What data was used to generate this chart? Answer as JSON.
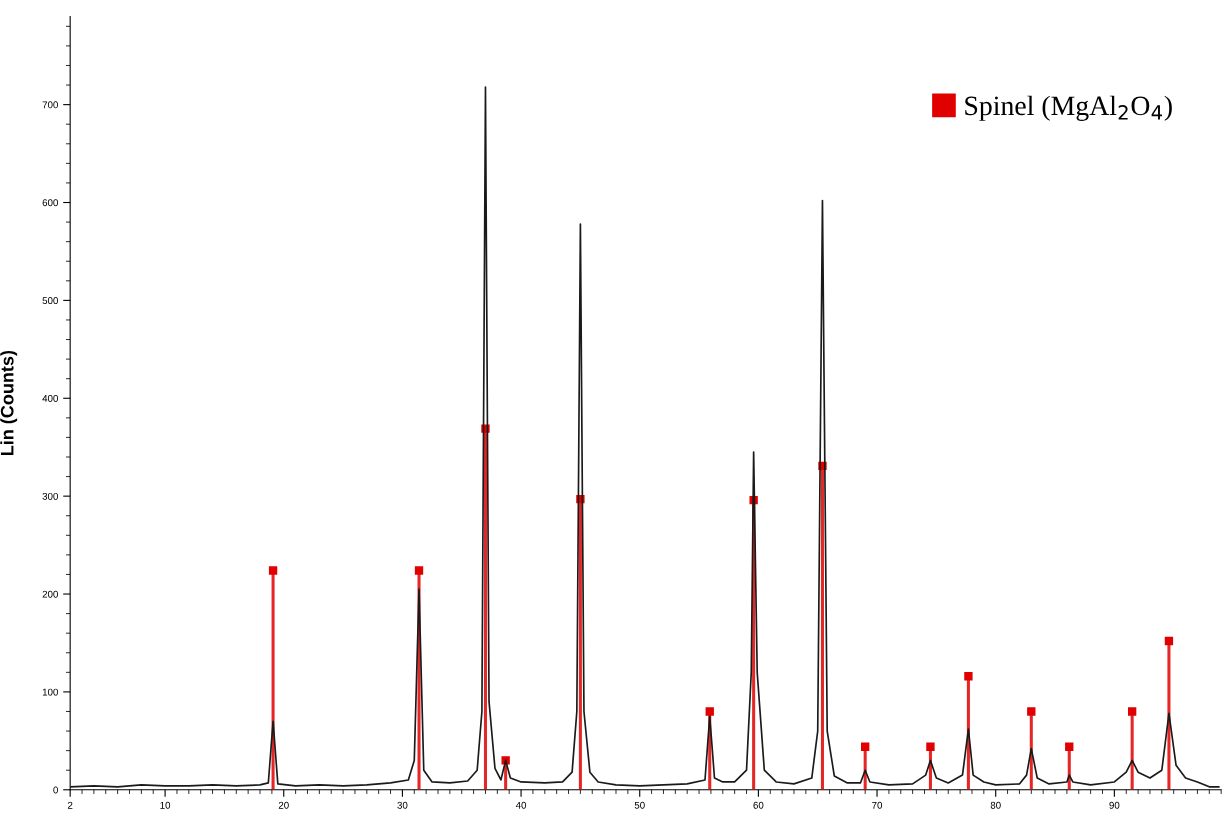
{
  "chart_data": {
    "type": "line",
    "ylabel": "Lin (Counts)",
    "xlim": [
      2,
      99
    ],
    "ylim": [
      0,
      790
    ],
    "xticks": [
      2,
      10,
      20,
      30,
      40,
      50,
      60,
      70,
      80,
      90
    ],
    "yticks": [
      0,
      100,
      200,
      300,
      400,
      500,
      600,
      700
    ],
    "grid": false,
    "legend": "top right",
    "series": [
      {
        "color": "#1a1a1a",
        "marker": "none",
        "line_style": "solid",
        "x": [
          2,
          4,
          6,
          8,
          10,
          12,
          14,
          16,
          18,
          18.7,
          19.1,
          19.5,
          21,
          23,
          25,
          27,
          29,
          30.5,
          31.0,
          31.4,
          31.8,
          32.5,
          34,
          35.5,
          36.3,
          36.7,
          37.0,
          37.3,
          37.8,
          38.3,
          38.7,
          39.1,
          40,
          42,
          43.5,
          44.3,
          44.7,
          45.0,
          45.3,
          45.8,
          46.5,
          48,
          50,
          52,
          54,
          55.5,
          55.9,
          56.3,
          57,
          58,
          59.0,
          59.4,
          59.6,
          59.9,
          60.5,
          61.5,
          63,
          64.5,
          65.0,
          65.4,
          65.8,
          66.4,
          67.5,
          68.6,
          69.0,
          69.4,
          71,
          73,
          74.1,
          74.5,
          75,
          76,
          77.2,
          77.7,
          78.1,
          79,
          80,
          82,
          82.6,
          83.0,
          83.5,
          84.5,
          86.0,
          86.2,
          86.5,
          88,
          90,
          91,
          91.5,
          92,
          93,
          94,
          94.6,
          95.2,
          96,
          97,
          98,
          98.8
        ],
        "values": [
          3,
          4,
          3,
          5,
          4,
          4,
          5,
          4,
          5,
          7,
          70,
          6,
          4,
          5,
          4,
          5,
          7,
          10,
          30,
          205,
          20,
          8,
          7,
          9,
          20,
          80,
          718,
          90,
          22,
          10,
          30,
          12,
          8,
          7,
          8,
          18,
          80,
          578,
          80,
          18,
          8,
          5,
          4,
          5,
          6,
          10,
          75,
          12,
          8,
          8,
          20,
          120,
          345,
          120,
          20,
          8,
          6,
          12,
          60,
          602,
          60,
          14,
          7,
          7,
          20,
          8,
          5,
          6,
          15,
          30,
          12,
          7,
          15,
          62,
          15,
          8,
          5,
          6,
          15,
          42,
          12,
          6,
          8,
          15,
          8,
          5,
          8,
          18,
          30,
          18,
          12,
          20,
          78,
          25,
          12,
          8,
          3,
          3
        ]
      },
      {
        "type": "lollipop",
        "name": "Spinel (MgAl$_{2}$O$_{4}$)",
        "color": "#e00000",
        "marker": "square",
        "x": [
          19.1,
          31.4,
          37.0,
          38.7,
          45.0,
          55.9,
          59.6,
          65.4,
          69.0,
          74.5,
          77.7,
          83.0,
          86.2,
          91.5,
          94.6
        ],
        "values": [
          224,
          224,
          369,
          30,
          297,
          80,
          296,
          331,
          44,
          44,
          116,
          80,
          44,
          80,
          152
        ]
      }
    ]
  }
}
